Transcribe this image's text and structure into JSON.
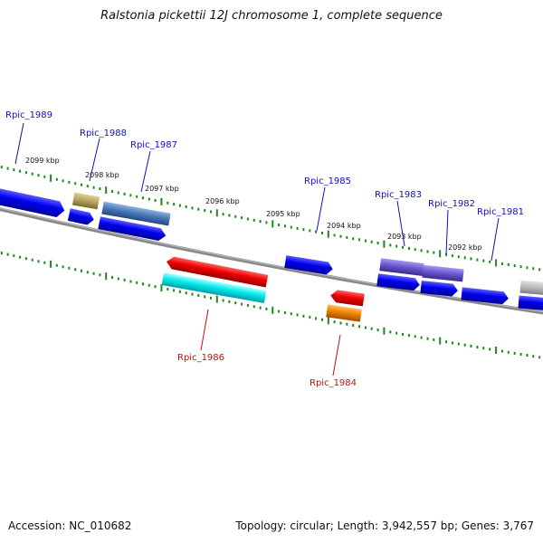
{
  "title": "Ralstonia pickettii 12J chromosome 1, complete sequence",
  "footer": {
    "accession": "Accession: NC_010682",
    "summary": "Topology: circular; Length: 3,942,557 bp; Genes: 3,767"
  },
  "ticks": [
    "2099 kbp",
    "2098 kbp",
    "2097 kbp",
    "2096 kbp",
    "2095 kbp",
    "2094 kbp",
    "2093 kbp",
    "2092 kbp"
  ],
  "genes": [
    {
      "id": "Rpic_1989",
      "color": "#0000e0"
    },
    {
      "id": "Rpic_1988",
      "color": "#b8a860"
    },
    {
      "id": "Rpic_1987",
      "color": "#4a7ab8"
    },
    {
      "id": "Rpic_1986",
      "color": "#00e8e8"
    },
    {
      "id": "Rpic_1985",
      "color": "#0000e0"
    },
    {
      "id": "Rpic_1984",
      "color": "#f08000"
    },
    {
      "id": "Rpic_1983",
      "color": "#6a5ad0"
    },
    {
      "id": "Rpic_1982",
      "color": "#6a5ad0"
    },
    {
      "id": "Rpic_1981",
      "color": "#0000e0"
    }
  ],
  "colors": {
    "forward": "#0000e0",
    "reverse": "#ee0000",
    "backbone": "#808080",
    "tick": "#1a8a1a",
    "label_forward": "#1010c0",
    "label_reverse": "#c01010"
  }
}
